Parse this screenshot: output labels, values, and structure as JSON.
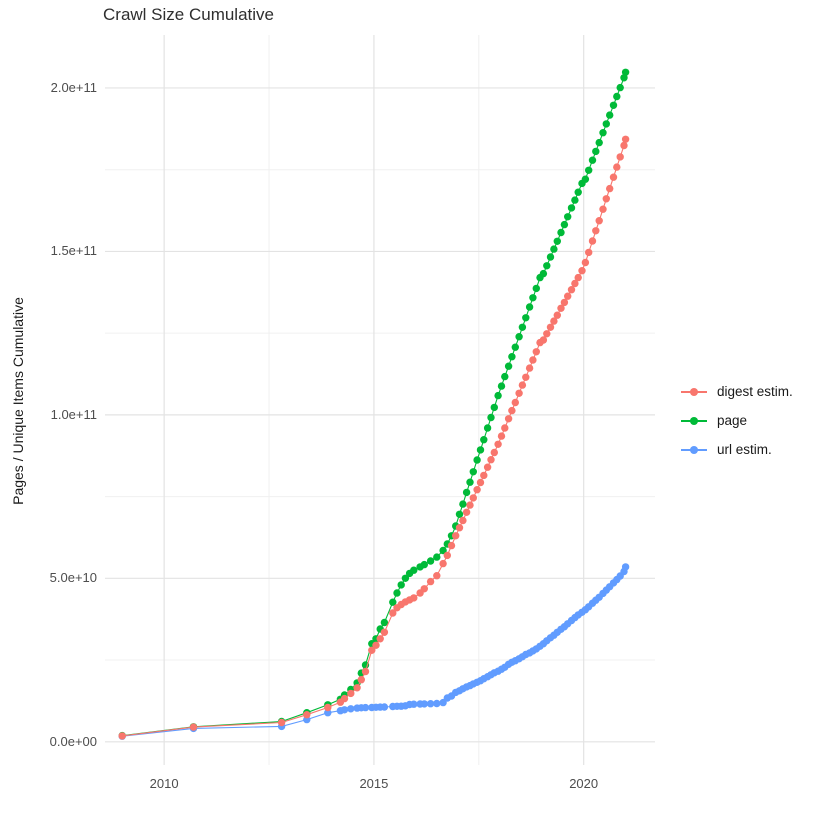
{
  "title": "Crawl Size Cumulative",
  "y_axis": {
    "label": "Pages / Unique Items Cumulative",
    "ticks": [
      "0.0e+00",
      "5.0e+10",
      "1.0e+11",
      "1.5e+11",
      "2.0e+11"
    ],
    "tick_values_e9": [
      0,
      50,
      100,
      150,
      200
    ]
  },
  "x_axis": {
    "ticks": [
      "2010",
      "2015",
      "2020"
    ],
    "tick_values": [
      2010,
      2015,
      2020
    ]
  },
  "legend": {
    "items": [
      {
        "label": "digest estim.",
        "color": "#F8766D"
      },
      {
        "label": "page",
        "color": "#00BA38"
      },
      {
        "label": "url estim.",
        "color": "#619CFF"
      }
    ]
  },
  "colors": {
    "digest": "#F8766D",
    "page": "#00BA38",
    "url": "#619CFF",
    "grid_major": "#e3e3e3",
    "grid_minor": "#f0f0f0",
    "axis_text": "#4d4d4d",
    "title_text": "#2f2f2f"
  },
  "chart_data": {
    "type": "line",
    "title": "Crawl Size Cumulative",
    "xlabel": "",
    "ylabel": "Pages / Unique Items Cumulative",
    "value_unit": "pages, values given in billions (1e9)",
    "xlim": [
      2008.59,
      2021.7
    ],
    "ylim_e9": [
      -7.1,
      216.2
    ],
    "x_gridlines_major": [
      2010,
      2015,
      2020
    ],
    "x_gridlines_minor": [
      2012.5,
      2017.5
    ],
    "y_gridlines_major_e9": [
      0,
      50,
      100,
      150,
      200
    ],
    "y_gridlines_minor_e9": [
      25,
      75,
      125,
      175
    ],
    "legend_position": "right",
    "x_years": [
      2009.0,
      2010.7,
      2012.8,
      2013.4,
      2013.9,
      2014.2,
      2014.3,
      2014.45,
      2014.6,
      2014.7,
      2014.8,
      2014.95,
      2015.05,
      2015.15,
      2015.25,
      2015.45,
      2015.55,
      2015.65,
      2015.75,
      2015.85,
      2015.95,
      2016.1,
      2016.2,
      2016.35,
      2016.5,
      2016.65,
      2016.75,
      2016.85,
      2016.95,
      2017.04,
      2017.12,
      2017.21,
      2017.29,
      2017.37,
      2017.46,
      2017.54,
      2017.62,
      2017.71,
      2017.79,
      2017.87,
      2017.96,
      2018.04,
      2018.12,
      2018.21,
      2018.29,
      2018.37,
      2018.46,
      2018.54,
      2018.62,
      2018.71,
      2018.79,
      2018.87,
      2018.96,
      2019.04,
      2019.12,
      2019.21,
      2019.29,
      2019.37,
      2019.46,
      2019.54,
      2019.62,
      2019.71,
      2019.79,
      2019.87,
      2019.96,
      2020.04,
      2020.12,
      2020.21,
      2020.29,
      2020.37,
      2020.46,
      2020.54,
      2020.62,
      2020.71,
      2020.79,
      2020.87,
      2020.96,
      2021.0
    ],
    "series": [
      {
        "name": "page",
        "color": "#00BA38",
        "values_e9": [
          1.9,
          4.6,
          6.2,
          8.9,
          11.3,
          13.0,
          14.3,
          16.0,
          18.0,
          21.0,
          23.5,
          30.0,
          31.5,
          34.5,
          36.5,
          42.7,
          45.5,
          48.0,
          50.0,
          51.5,
          52.5,
          53.5,
          54.2,
          55.3,
          56.5,
          58.5,
          60.5,
          63.0,
          66.0,
          69.6,
          72.7,
          76.3,
          79.4,
          82.6,
          86.2,
          89.3,
          92.4,
          96.0,
          99.2,
          102.3,
          105.9,
          108.8,
          111.7,
          114.9,
          117.8,
          120.7,
          123.9,
          126.8,
          129.7,
          133.0,
          135.8,
          138.7,
          142.0,
          143.2,
          145.6,
          148.3,
          150.7,
          153.1,
          155.8,
          158.2,
          160.6,
          163.3,
          165.7,
          168.1,
          170.8,
          172.1,
          174.8,
          177.9,
          180.6,
          183.3,
          186.3,
          189.0,
          191.7,
          194.7,
          197.4,
          200.1,
          203.1,
          204.8
        ]
      },
      {
        "name": "url estim.",
        "color": "#619CFF",
        "values_e9": [
          1.7,
          4.1,
          4.7,
          6.8,
          8.9,
          9.5,
          9.8,
          10.1,
          10.3,
          10.4,
          10.45,
          10.5,
          10.55,
          10.6,
          10.65,
          10.8,
          10.85,
          10.9,
          11.0,
          11.4,
          11.5,
          11.55,
          11.6,
          11.65,
          11.7,
          12.0,
          13.4,
          14.0,
          15.1,
          15.6,
          16.2,
          16.8,
          17.2,
          17.7,
          18.2,
          18.7,
          19.3,
          19.9,
          20.5,
          21.1,
          21.6,
          22.2,
          22.8,
          23.7,
          24.3,
          24.8,
          25.4,
          26.0,
          26.7,
          27.2,
          27.8,
          28.4,
          29.2,
          30.0,
          30.9,
          31.8,
          32.6,
          33.5,
          34.4,
          35.2,
          36.1,
          37.1,
          38.0,
          38.8,
          39.6,
          40.4,
          41.3,
          42.4,
          43.3,
          44.2,
          45.4,
          46.4,
          47.4,
          48.6,
          49.6,
          50.7,
          52.1,
          53.5
        ]
      },
      {
        "name": "digest estim.",
        "color": "#F8766D",
        "values_e9": [
          1.8,
          4.5,
          5.9,
          8.3,
          10.5,
          12.1,
          13.2,
          14.8,
          16.5,
          19.0,
          21.5,
          28.0,
          29.5,
          31.5,
          33.5,
          39.4,
          41.0,
          42.0,
          42.8,
          43.4,
          44.0,
          45.5,
          46.8,
          49.0,
          50.8,
          54.5,
          57.0,
          60.0,
          63.0,
          65.5,
          67.7,
          70.2,
          72.4,
          74.6,
          77.1,
          79.3,
          81.5,
          84.0,
          86.3,
          88.5,
          91.0,
          93.5,
          96.0,
          98.8,
          101.3,
          103.8,
          106.6,
          109.1,
          111.5,
          114.3,
          116.8,
          119.3,
          122.1,
          122.9,
          124.8,
          126.8,
          128.7,
          130.5,
          132.6,
          134.4,
          136.3,
          138.3,
          140.2,
          142.0,
          144.1,
          146.6,
          149.7,
          153.2,
          156.3,
          159.4,
          162.9,
          166.1,
          169.2,
          172.7,
          175.8,
          178.9,
          182.4,
          184.3
        ]
      }
    ]
  }
}
